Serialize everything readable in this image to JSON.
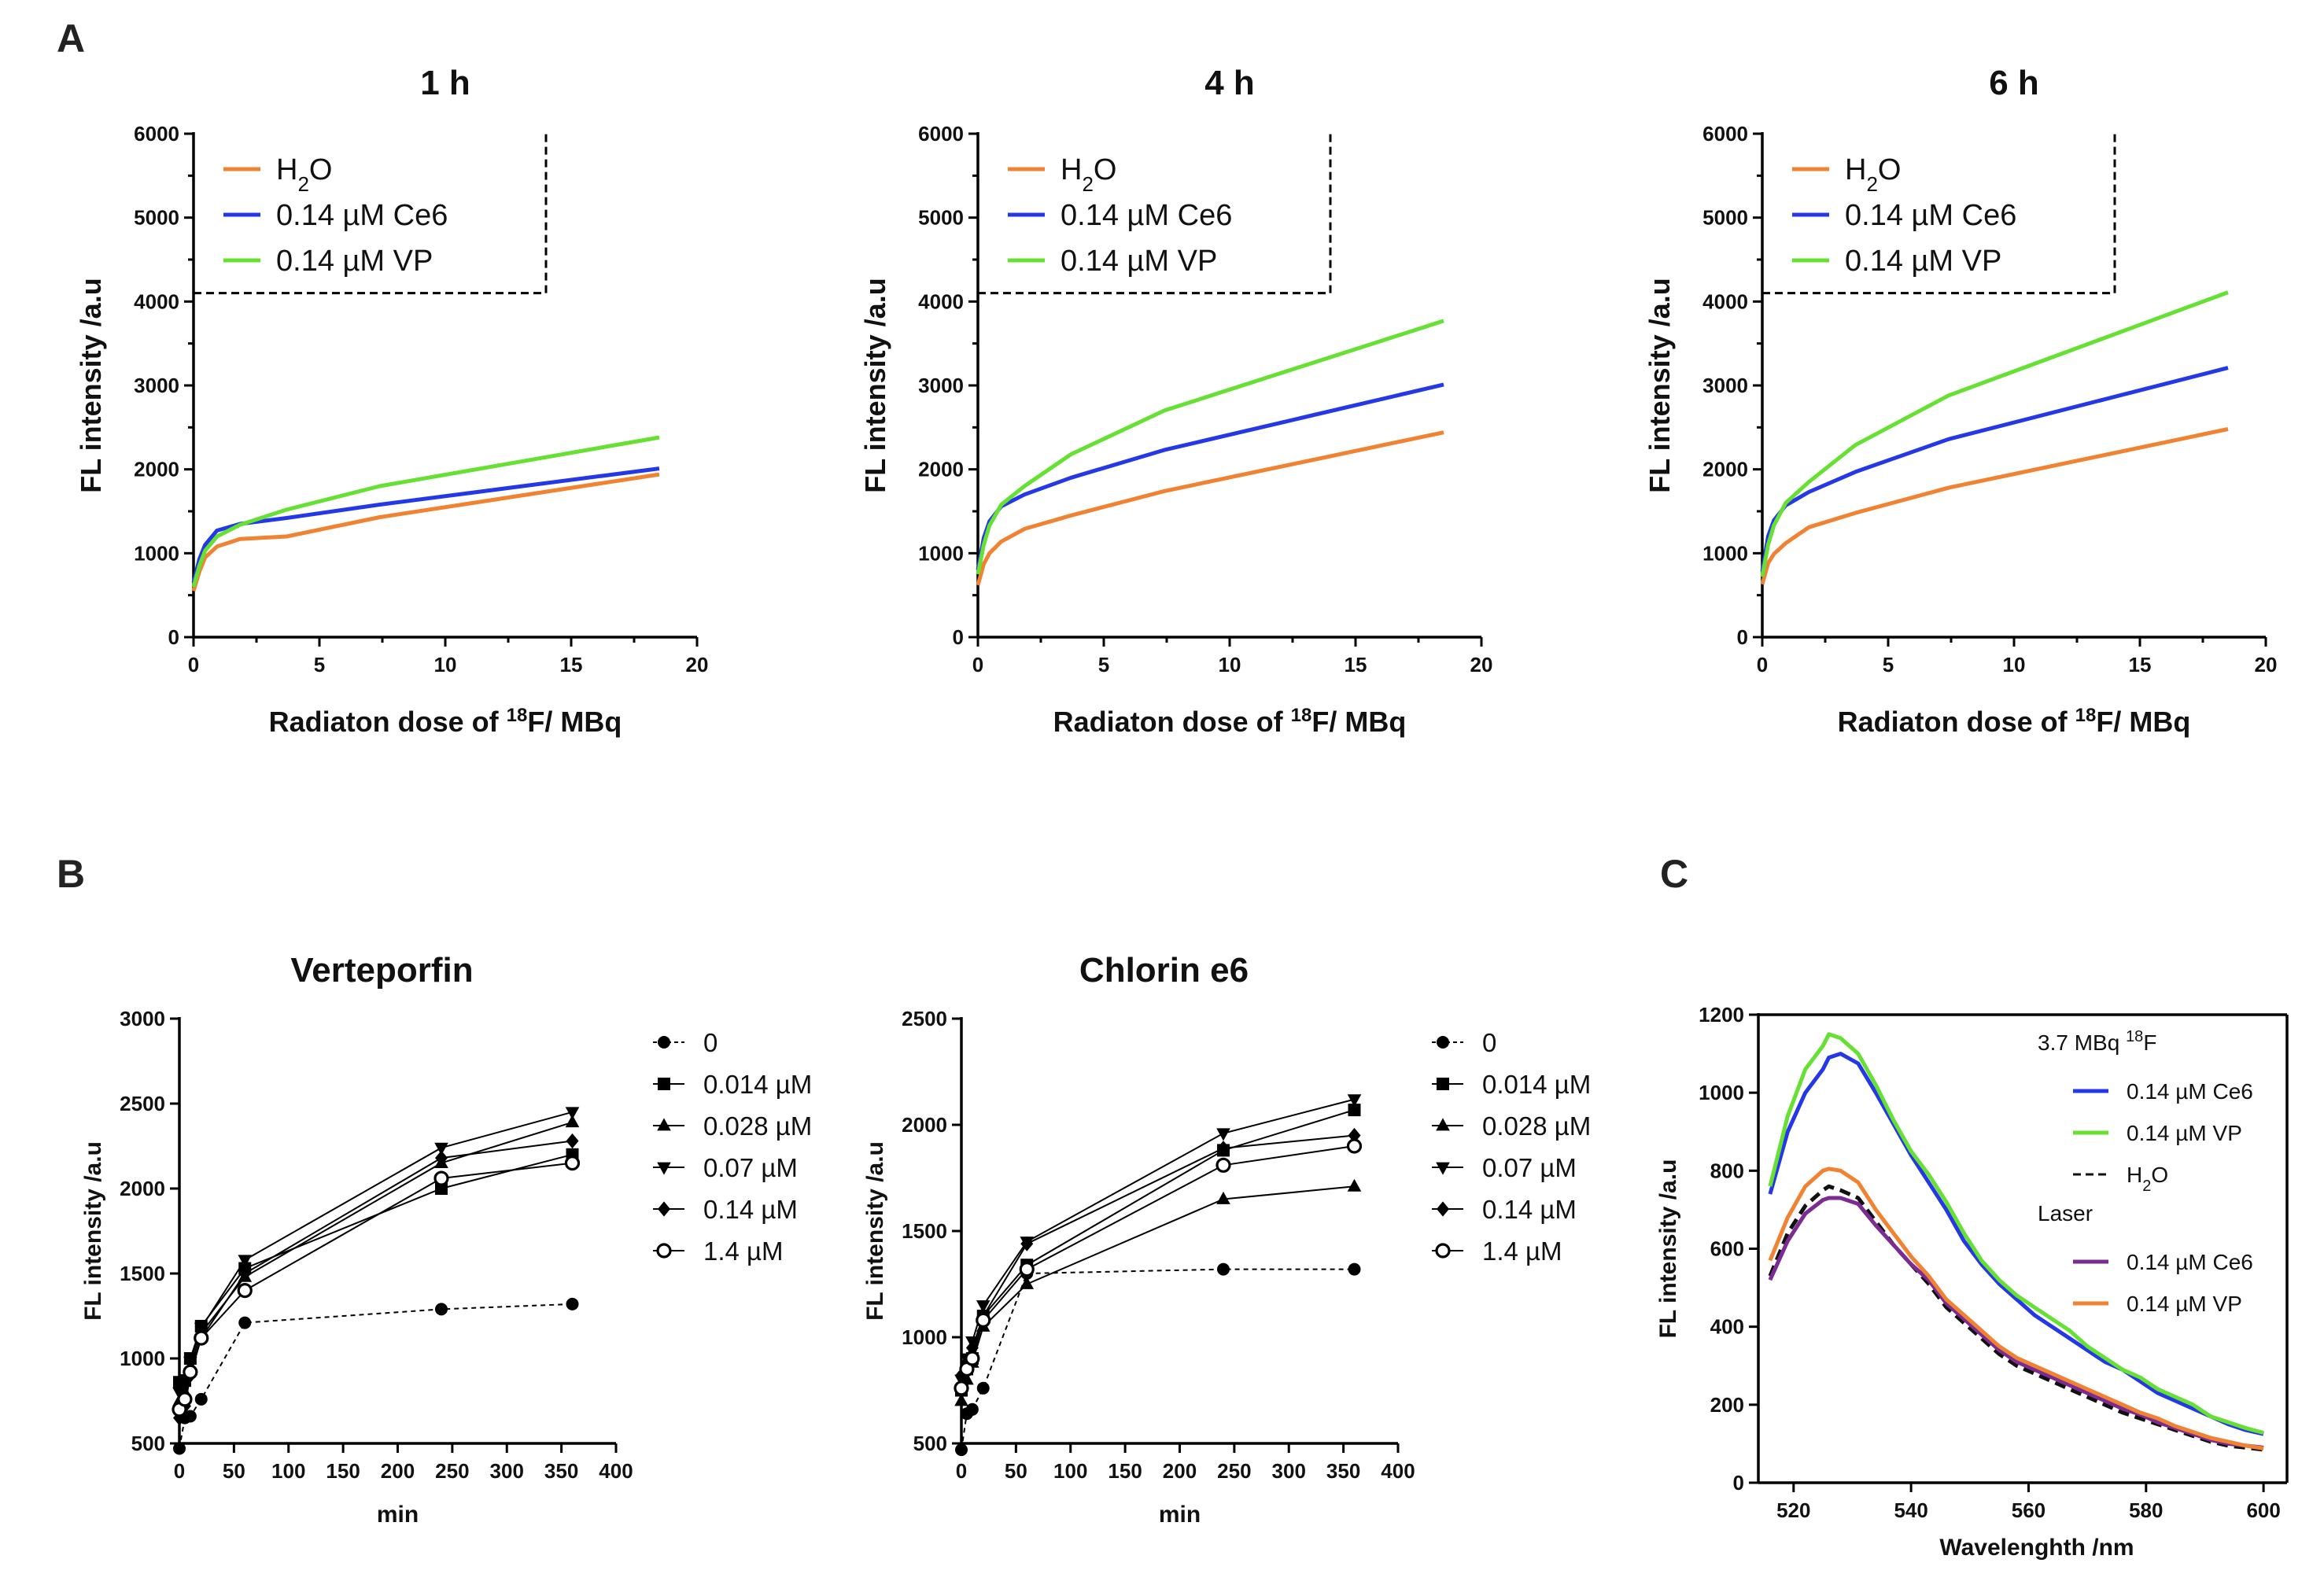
{
  "figure": {
    "panel_letters": [
      "A",
      "B",
      "C"
    ]
  },
  "chart_data": [
    {
      "id": "A1",
      "type": "line",
      "title": "1 h",
      "xlabel_pre": "Radiaton dose of ",
      "xlabel_sup": "18",
      "xlabel_post": "F/ MBq",
      "ylabel": "FL intensity /a.u",
      "xlim": [
        0,
        20
      ],
      "ylim": [
        0,
        6000
      ],
      "xticks": [
        0,
        5,
        10,
        15,
        20
      ],
      "yticks": [
        0,
        1000,
        2000,
        3000,
        4000,
        5000,
        6000
      ],
      "legend_box": true,
      "series": [
        {
          "name": "H2O",
          "label_main": "H",
          "label_sub": "2",
          "label_tail": "O",
          "color": "#F08232",
          "x": [
            0,
            0.23,
            0.46,
            0.93,
            1.85,
            3.7,
            7.4,
            18.5
          ],
          "y": [
            550,
            780,
            950,
            1080,
            1170,
            1200,
            1430,
            1940
          ]
        },
        {
          "name": "0.14 µM Ce6",
          "label_main": "0.14 µM Ce6",
          "color": "#2438E8",
          "x": [
            0,
            0.23,
            0.46,
            0.93,
            1.85,
            3.7,
            7.4,
            18.5
          ],
          "y": [
            650,
            930,
            1100,
            1270,
            1350,
            1420,
            1580,
            2010
          ]
        },
        {
          "name": "0.14 µM VP",
          "label_main": "0.14 µM VP",
          "color": "#66E033",
          "x": [
            0,
            0.23,
            0.46,
            0.93,
            1.85,
            3.7,
            7.4,
            18.5
          ],
          "y": [
            600,
            850,
            1030,
            1200,
            1340,
            1520,
            1800,
            2380
          ]
        }
      ]
    },
    {
      "id": "A2",
      "type": "line",
      "title": "4 h",
      "xlabel_pre": "Radiaton dose of ",
      "xlabel_sup": "18",
      "xlabel_post": "F/ MBq",
      "ylabel": "FL intensity /a.u",
      "xlim": [
        0,
        20
      ],
      "ylim": [
        0,
        6000
      ],
      "xticks": [
        0,
        5,
        10,
        15,
        20
      ],
      "yticks": [
        0,
        1000,
        2000,
        3000,
        4000,
        5000,
        6000
      ],
      "legend_box": true,
      "series": [
        {
          "name": "H2O",
          "label_main": "H",
          "label_sub": "2",
          "label_tail": "O",
          "color": "#F08232",
          "x": [
            0,
            0.23,
            0.46,
            0.93,
            1.85,
            3.7,
            7.4,
            18.5
          ],
          "y": [
            620,
            870,
            1000,
            1140,
            1290,
            1450,
            1740,
            2440
          ]
        },
        {
          "name": "0.14 µM Ce6",
          "label_main": "0.14 µM Ce6",
          "color": "#2438E8",
          "x": [
            0,
            0.23,
            0.46,
            0.93,
            1.85,
            3.7,
            7.4,
            18.5
          ],
          "y": [
            800,
            1180,
            1380,
            1560,
            1700,
            1900,
            2230,
            3010
          ]
        },
        {
          "name": "0.14 µM VP",
          "label_main": "0.14 µM VP",
          "color": "#66E033",
          "x": [
            0,
            0.23,
            0.46,
            0.93,
            1.85,
            3.7,
            7.4,
            18.5
          ],
          "y": [
            750,
            1100,
            1330,
            1580,
            1800,
            2180,
            2700,
            3770
          ]
        }
      ]
    },
    {
      "id": "A3",
      "type": "line",
      "title": "6 h",
      "xlabel_pre": "Radiaton dose of ",
      "xlabel_sup": "18",
      "xlabel_post": "F/ MBq",
      "ylabel": "FL intensity /a.u",
      "xlim": [
        0,
        20
      ],
      "ylim": [
        0,
        6000
      ],
      "xticks": [
        0,
        5,
        10,
        15,
        20
      ],
      "yticks": [
        0,
        1000,
        2000,
        3000,
        4000,
        5000,
        6000
      ],
      "legend_box": true,
      "series": [
        {
          "name": "H2O",
          "label_main": "H",
          "label_sub": "2",
          "label_tail": "O",
          "color": "#F08232",
          "x": [
            0,
            0.23,
            0.46,
            0.93,
            1.85,
            3.7,
            7.4,
            18.5
          ],
          "y": [
            630,
            880,
            990,
            1120,
            1310,
            1480,
            1780,
            2480
          ]
        },
        {
          "name": "0.14 µM Ce6",
          "label_main": "0.14 µM Ce6",
          "color": "#2438E8",
          "x": [
            0,
            0.23,
            0.46,
            0.93,
            1.85,
            3.7,
            7.4,
            18.5
          ],
          "y": [
            780,
            1200,
            1390,
            1570,
            1730,
            1970,
            2360,
            3210
          ]
        },
        {
          "name": "0.14 µM VP",
          "label_main": "0.14 µM VP",
          "color": "#66E033",
          "x": [
            0,
            0.23,
            0.46,
            0.93,
            1.85,
            3.7,
            7.4,
            18.5
          ],
          "y": [
            720,
            1100,
            1330,
            1600,
            1850,
            2290,
            2880,
            4110
          ]
        }
      ]
    },
    {
      "id": "B1",
      "type": "line",
      "title": "Verteporfin",
      "xlabel": "min",
      "ylabel": "FL intensity /a.u",
      "xlim": [
        0,
        400
      ],
      "ylim": [
        500,
        3000
      ],
      "xticks": [
        0,
        50,
        100,
        150,
        200,
        250,
        300,
        350,
        400
      ],
      "yticks": [
        500,
        1000,
        1500,
        2000,
        2500,
        3000
      ],
      "series": [
        {
          "name": "0",
          "marker": "circle",
          "dashed": true,
          "x": [
            0,
            5,
            10,
            20,
            60,
            240,
            360
          ],
          "y": [
            470,
            650,
            660,
            760,
            1210,
            1290,
            1320
          ]
        },
        {
          "name": "0.014 µM",
          "marker": "square",
          "x": [
            0,
            5,
            10,
            20,
            60,
            240,
            360
          ],
          "y": [
            860,
            870,
            1000,
            1190,
            1530,
            2000,
            2200
          ]
        },
        {
          "name": "0.028 µM",
          "marker": "triangle",
          "x": [
            0,
            5,
            10,
            20,
            60,
            240,
            360
          ],
          "y": [
            750,
            800,
            950,
            1150,
            1480,
            2150,
            2390
          ]
        },
        {
          "name": "0.07 µM",
          "marker": "triangle-down",
          "x": [
            0,
            5,
            10,
            20,
            60,
            240,
            360
          ],
          "y": [
            800,
            850,
            980,
            1180,
            1580,
            2240,
            2450
          ]
        },
        {
          "name": "0.14 µM",
          "marker": "diamond",
          "x": [
            0,
            5,
            10,
            20,
            60,
            240,
            360
          ],
          "y": [
            650,
            720,
            900,
            1120,
            1500,
            2180,
            2280
          ]
        },
        {
          "name": "1.4 µM",
          "marker": "open-circle",
          "x": [
            0,
            5,
            10,
            20,
            60,
            240,
            360
          ],
          "y": [
            700,
            760,
            920,
            1120,
            1400,
            2060,
            2150
          ]
        }
      ]
    },
    {
      "id": "B2",
      "type": "line",
      "title": "Chlorin e6",
      "xlabel": "min",
      "ylabel": "FL intensity /a.u",
      "xlim": [
        0,
        400
      ],
      "ylim": [
        500,
        2500
      ],
      "xticks": [
        0,
        50,
        100,
        150,
        200,
        250,
        300,
        350,
        400
      ],
      "yticks": [
        500,
        1000,
        1500,
        2000,
        2500
      ],
      "series": [
        {
          "name": "0",
          "marker": "circle",
          "dashed": true,
          "x": [
            0,
            5,
            10,
            20,
            60,
            240,
            360
          ],
          "y": [
            470,
            640,
            660,
            760,
            1300,
            1320,
            1320
          ]
        },
        {
          "name": "0.014 µM",
          "marker": "square",
          "x": [
            0,
            5,
            10,
            20,
            60,
            240,
            360
          ],
          "y": [
            750,
            850,
            900,
            1100,
            1340,
            1880,
            2070
          ]
        },
        {
          "name": "0.028 µM",
          "marker": "triangle",
          "x": [
            0,
            5,
            10,
            20,
            60,
            240,
            360
          ],
          "y": [
            700,
            800,
            880,
            1050,
            1250,
            1650,
            1710
          ]
        },
        {
          "name": "0.07 µM",
          "marker": "triangle-down",
          "x": [
            0,
            5,
            10,
            20,
            60,
            240,
            360
          ],
          "y": [
            800,
            900,
            980,
            1150,
            1450,
            1960,
            2120
          ]
        },
        {
          "name": "0.14 µM",
          "marker": "diamond",
          "x": [
            0,
            5,
            10,
            20,
            60,
            240,
            360
          ],
          "y": [
            820,
            880,
            950,
            1100,
            1440,
            1890,
            1950
          ]
        },
        {
          "name": "1.4 µM",
          "marker": "open-circle",
          "x": [
            0,
            5,
            10,
            20,
            60,
            240,
            360
          ],
          "y": [
            760,
            850,
            900,
            1080,
            1320,
            1810,
            1900
          ]
        }
      ]
    },
    {
      "id": "C",
      "type": "line",
      "title": "",
      "xlabel": "Wavelenghth /nm",
      "ylabel": "FL intensity /a.u",
      "xlim": [
        514,
        604
      ],
      "ylim": [
        0,
        1200
      ],
      "xticks": [
        520,
        540,
        560,
        580,
        600
      ],
      "yticks": [
        0,
        200,
        400,
        600,
        800,
        1000,
        1200
      ],
      "legend_header_1": "3.7 MBq ",
      "legend_header_1_sup": "18",
      "legend_header_1_tail": "F",
      "legend_header_2": "Laser",
      "series": [
        {
          "name": "0.14 µM Ce6",
          "group": "F18",
          "color": "#2438E8",
          "x": [
            516,
            519,
            522,
            525,
            526,
            528,
            531,
            534,
            537,
            540,
            543,
            546,
            549,
            552,
            555,
            558,
            561,
            564,
            567,
            570,
            573,
            576,
            579,
            582,
            585,
            588,
            591,
            594,
            597,
            600
          ],
          "y": [
            740,
            900,
            1000,
            1060,
            1090,
            1100,
            1075,
            1000,
            920,
            840,
            770,
            700,
            620,
            560,
            510,
            470,
            430,
            400,
            370,
            340,
            310,
            290,
            260,
            230,
            210,
            190,
            170,
            150,
            135,
            125
          ]
        },
        {
          "name": "0.14 µM VP",
          "group": "F18",
          "color": "#66E033",
          "x": [
            516,
            519,
            522,
            525,
            526,
            528,
            531,
            534,
            537,
            540,
            543,
            546,
            549,
            552,
            555,
            558,
            561,
            564,
            567,
            570,
            573,
            576,
            579,
            582,
            585,
            588,
            591,
            594,
            597,
            600
          ],
          "y": [
            760,
            940,
            1060,
            1120,
            1150,
            1140,
            1100,
            1020,
            930,
            850,
            790,
            720,
            640,
            570,
            520,
            480,
            450,
            420,
            390,
            350,
            320,
            290,
            270,
            240,
            220,
            200,
            170,
            155,
            140,
            128
          ]
        },
        {
          "name": "H2O",
          "group": "F18",
          "color": "#111111",
          "dashed": true,
          "x": [
            516,
            519,
            522,
            525,
            526,
            528,
            531,
            534,
            537,
            540,
            543,
            546,
            549,
            552,
            555,
            558,
            561,
            564,
            567,
            570,
            573,
            576,
            579,
            582,
            585,
            588,
            591,
            594,
            597,
            600
          ],
          "y": [
            530,
            640,
            710,
            750,
            760,
            750,
            730,
            670,
            610,
            560,
            510,
            450,
            410,
            370,
            330,
            300,
            280,
            260,
            240,
            220,
            200,
            180,
            165,
            150,
            135,
            120,
            105,
            95,
            90,
            85
          ]
        },
        {
          "name": "0.14 µM Ce6",
          "group": "Laser",
          "color": "#7B2B91",
          "x": [
            516,
            519,
            522,
            525,
            526,
            528,
            531,
            534,
            537,
            540,
            543,
            546,
            549,
            552,
            555,
            558,
            561,
            564,
            567,
            570,
            573,
            576,
            579,
            582,
            585,
            588,
            591,
            594,
            597,
            600
          ],
          "y": [
            520,
            620,
            690,
            725,
            730,
            730,
            715,
            660,
            610,
            560,
            520,
            460,
            420,
            380,
            340,
            310,
            290,
            270,
            250,
            230,
            210,
            190,
            175,
            155,
            140,
            125,
            110,
            100,
            95,
            90
          ]
        },
        {
          "name": "0.14 µM VP",
          "group": "Laser",
          "color": "#F08232",
          "x": [
            516,
            519,
            522,
            525,
            526,
            528,
            531,
            534,
            537,
            540,
            543,
            546,
            549,
            552,
            555,
            558,
            561,
            564,
            567,
            570,
            573,
            576,
            579,
            582,
            585,
            588,
            591,
            594,
            597,
            600
          ],
          "y": [
            570,
            680,
            760,
            800,
            805,
            800,
            770,
            700,
            640,
            580,
            530,
            470,
            430,
            390,
            350,
            320,
            300,
            280,
            260,
            240,
            220,
            200,
            180,
            165,
            145,
            130,
            115,
            105,
            95,
            88
          ]
        }
      ]
    }
  ]
}
